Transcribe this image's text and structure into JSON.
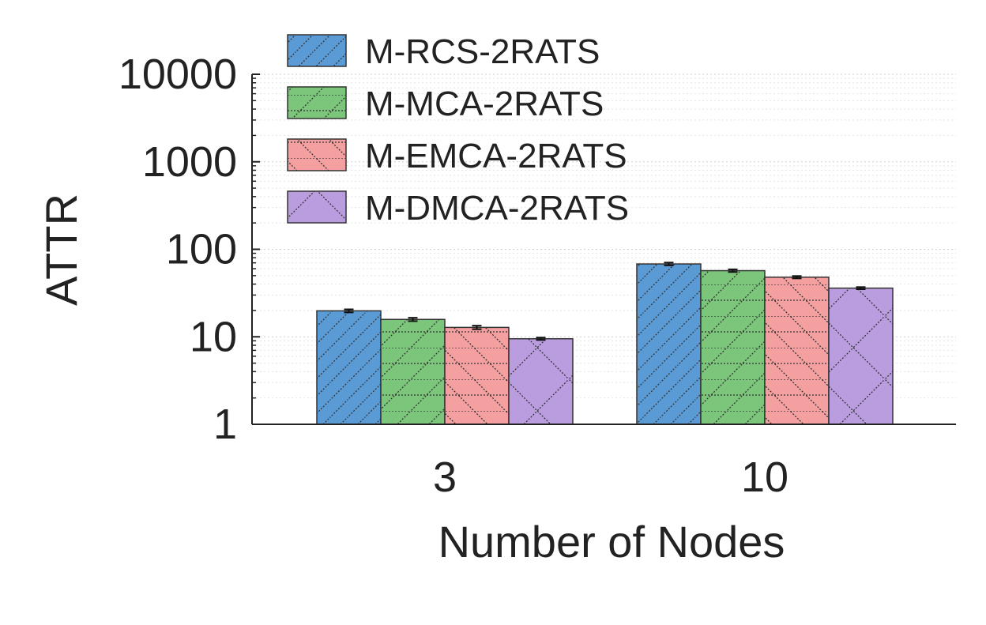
{
  "chart_data": {
    "type": "bar",
    "xlabel": "Number of Nodes",
    "ylabel": "ATTR",
    "yscale": "log",
    "ylim": [
      1,
      10000
    ],
    "yticks": [
      1,
      10,
      100,
      1000,
      10000
    ],
    "ytick_labels": [
      "1",
      "10",
      "100",
      "1000",
      "10000"
    ],
    "categories": [
      "3",
      "10"
    ],
    "grid": "on (major and minor, dotted)",
    "legend_position": "top-left (above axes)",
    "error_bars": true,
    "series": [
      {
        "name": "M-RCS-2RATS",
        "values": [
          19.8,
          68
        ],
        "errors": [
          0.8,
          2.5
        ],
        "color": "#5b9bd5",
        "hatch": "diagonal"
      },
      {
        "name": "M-MCA-2RATS",
        "values": [
          15.8,
          57
        ],
        "errors": [
          0.7,
          2.0
        ],
        "color": "#7bc67b",
        "hatch": "horizontal-diagonal"
      },
      {
        "name": "M-EMCA-2RATS",
        "values": [
          12.8,
          48
        ],
        "errors": [
          0.6,
          1.5
        ],
        "color": "#f4a0a0",
        "hatch": "horizontal-backdiagonal"
      },
      {
        "name": "M-DMCA-2RATS",
        "values": [
          9.5,
          36
        ],
        "errors": [
          0.3,
          1.0
        ],
        "color": "#b99ddf",
        "hatch": "crosshatch"
      }
    ]
  }
}
